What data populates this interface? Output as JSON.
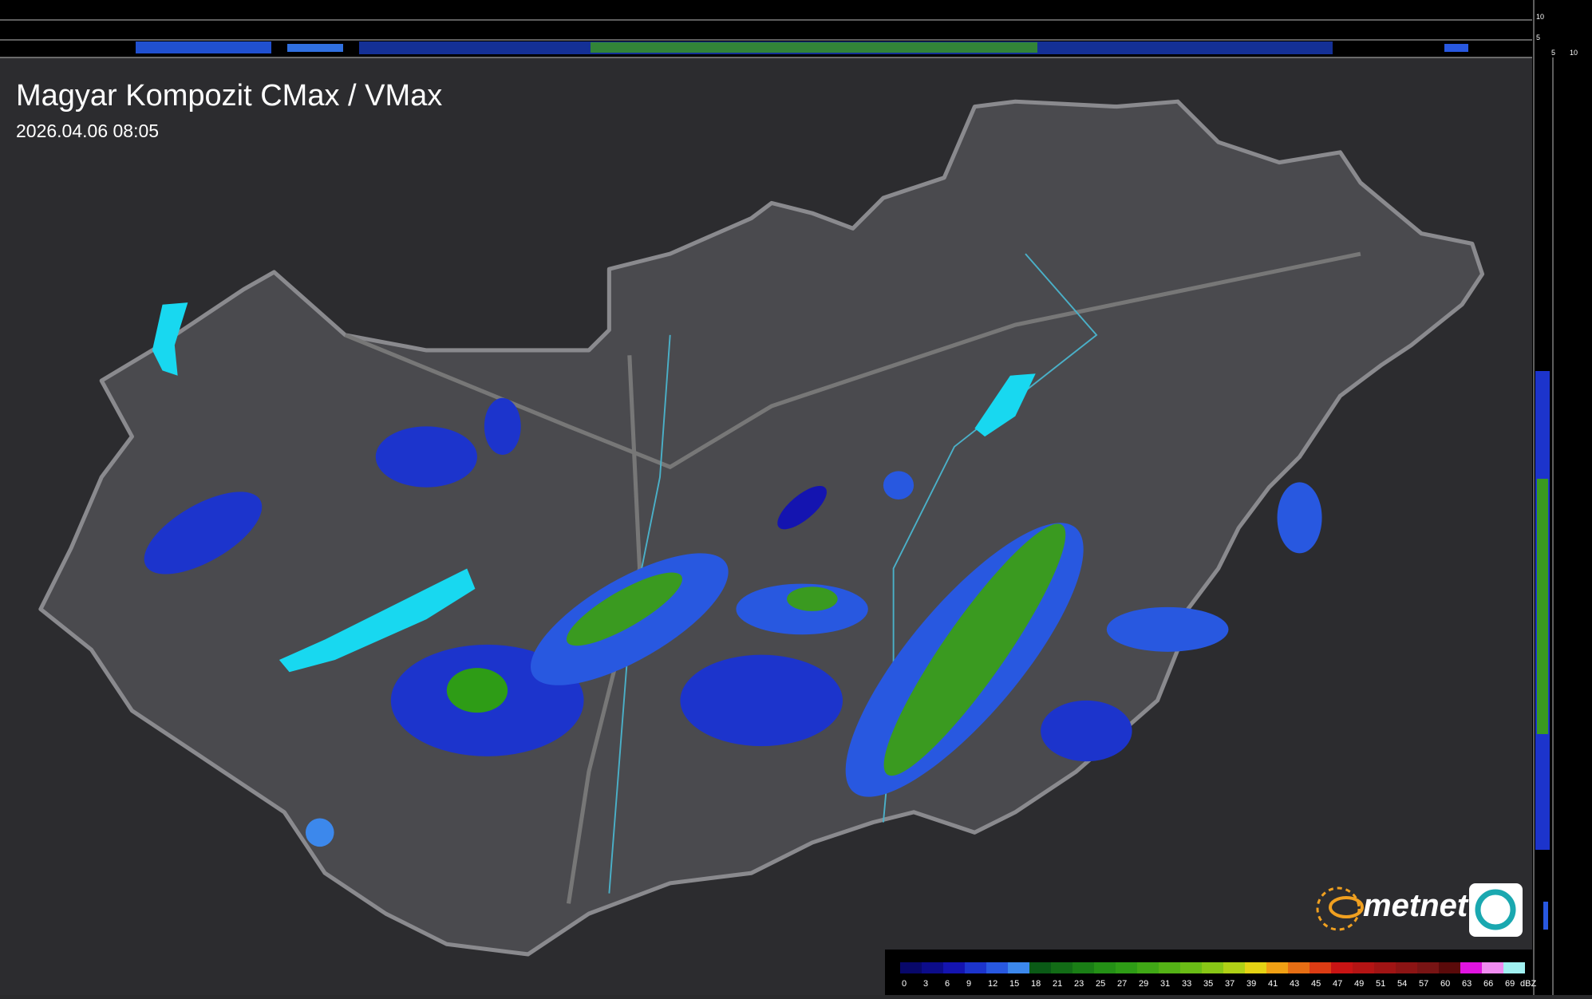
{
  "header": {
    "title": "Magyar Kompozit CMax / VMax",
    "timestamp": "2026.04.06 08:05"
  },
  "side_axis": {
    "top": [
      "10",
      "5"
    ],
    "bottom": [
      "5",
      "10"
    ]
  },
  "legend": {
    "ticks": [
      0,
      3,
      6,
      9,
      12,
      15,
      18,
      21,
      23,
      25,
      27,
      29,
      31,
      33,
      35,
      37,
      39,
      41,
      43,
      45,
      47,
      49,
      51,
      54,
      57,
      60,
      63,
      66,
      69
    ],
    "colors": [
      "#08086a",
      "#0c0c8a",
      "#1414b0",
      "#1c34cc",
      "#2858e0",
      "#3c88ec",
      "#0a5a16",
      "#126c16",
      "#1a7e16",
      "#249016",
      "#2e9c16",
      "#40a816",
      "#54b216",
      "#6abc16",
      "#88c616",
      "#b0d016",
      "#e4d214",
      "#f0a014",
      "#e66e14",
      "#dc3c14",
      "#c81414",
      "#b41414",
      "#a01414",
      "#8c1414",
      "#781414",
      "#5a0a0a",
      "#e014e0",
      "#f08cf0",
      "#a0f0f0"
    ],
    "unit": "dBZ"
  },
  "logo": {
    "text": "metnet"
  }
}
